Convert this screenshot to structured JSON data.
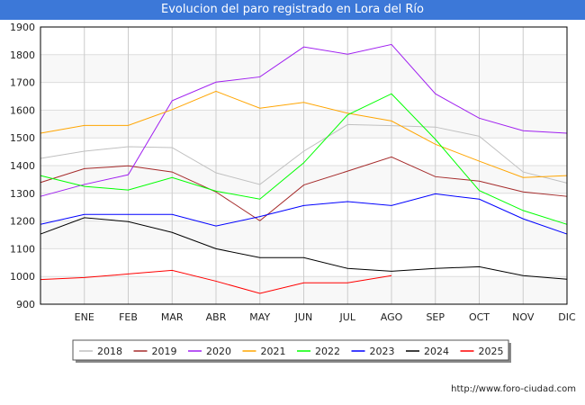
{
  "title": "Evolucion del paro registrado en Lora del Río",
  "url": "http://www.foro-ciudad.com",
  "chart_data": {
    "type": "line",
    "title": "Evolucion del paro registrado en Lora del Río",
    "xlabel": "",
    "ylabel": "",
    "categories": [
      "",
      "ENE",
      "FEB",
      "MAR",
      "ABR",
      "MAY",
      "JUN",
      "JUL",
      "AGO",
      "SEP",
      "OCT",
      "NOV",
      "DIC"
    ],
    "ylim": [
      900,
      1900
    ],
    "yticks": [
      900,
      1000,
      1100,
      1200,
      1300,
      1400,
      1500,
      1600,
      1700,
      1800,
      1900
    ],
    "grid": true,
    "legend_position": "bottom",
    "series": [
      {
        "name": "2018",
        "color": "#c0c0c0",
        "values": [
          1426,
          1452,
          1468,
          1465,
          1374,
          1332,
          1452,
          1548,
          1544,
          1539,
          1506,
          1377,
          1337
        ]
      },
      {
        "name": "2019",
        "color": "#a52a2a",
        "values": [
          1339,
          1389,
          1399,
          1377,
          1305,
          1201,
          1330,
          1380,
          1431,
          1360,
          1344,
          1305,
          1289
        ]
      },
      {
        "name": "2020",
        "color": "#a020f0",
        "values": [
          1289,
          1332,
          1367,
          1634,
          1701,
          1720,
          1828,
          1802,
          1837,
          1659,
          1571,
          1526,
          1517
        ]
      },
      {
        "name": "2021",
        "color": "#ffa500",
        "values": [
          1517,
          1545,
          1545,
          1602,
          1668,
          1607,
          1628,
          1589,
          1561,
          1477,
          1416,
          1357,
          1364
        ]
      },
      {
        "name": "2022",
        "color": "#00ff00",
        "values": [
          1364,
          1325,
          1312,
          1357,
          1308,
          1279,
          1410,
          1583,
          1659,
          1495,
          1310,
          1238,
          1188
        ]
      },
      {
        "name": "2023",
        "color": "#0000ff",
        "values": [
          1188,
          1224,
          1224,
          1224,
          1182,
          1216,
          1256,
          1270,
          1256,
          1298,
          1279,
          1208,
          1153
        ]
      },
      {
        "name": "2024",
        "color": "#000000",
        "values": [
          1153,
          1212,
          1198,
          1159,
          1100,
          1068,
          1068,
          1029,
          1019,
          1029,
          1035,
          1003,
          990
        ]
      },
      {
        "name": "2025",
        "color": "#ff0000",
        "values": [
          989,
          996,
          1009,
          1022,
          983,
          939,
          977,
          977,
          1003,
          null,
          null,
          null,
          null
        ]
      }
    ]
  }
}
